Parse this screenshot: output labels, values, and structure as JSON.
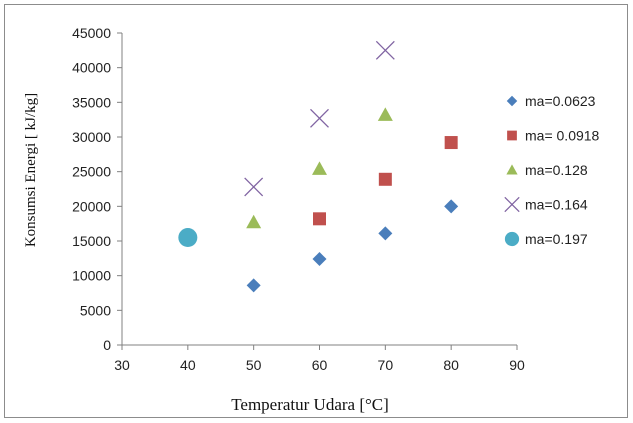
{
  "chart_data": {
    "type": "scatter",
    "xlabel": "Temperatur Udara [°C]",
    "ylabel": "Konsumsi Energi [ kJ/kg]",
    "xlim": [
      30,
      90
    ],
    "ylim": [
      0,
      45000
    ],
    "xticks": [
      30,
      40,
      50,
      60,
      70,
      80,
      90
    ],
    "yticks": [
      0,
      5000,
      10000,
      15000,
      20000,
      25000,
      30000,
      35000,
      40000,
      45000
    ],
    "grid": false,
    "legend_position": "right",
    "series": [
      {
        "name": "ma=0.0623",
        "marker": "diamond",
        "color": "#4a7ebb",
        "points": [
          [
            50,
            8600
          ],
          [
            60,
            12400
          ],
          [
            70,
            16100
          ],
          [
            80,
            20000
          ]
        ]
      },
      {
        "name": "ma= 0.0918",
        "marker": "square",
        "color": "#c0504d",
        "points": [
          [
            60,
            18200
          ],
          [
            70,
            23900
          ],
          [
            80,
            29200
          ]
        ]
      },
      {
        "name": "ma=0.128",
        "marker": "triangle",
        "color": "#9bbb59",
        "points": [
          [
            50,
            17700
          ],
          [
            60,
            25400
          ],
          [
            70,
            33200
          ]
        ]
      },
      {
        "name": "ma=0.164",
        "marker": "x",
        "color": "#8064a2",
        "points": [
          [
            50,
            22800
          ],
          [
            60,
            32700
          ],
          [
            70,
            42500
          ]
        ]
      },
      {
        "name": "ma=0.197",
        "marker": "circle",
        "color": "#4bacc6",
        "points": [
          [
            40,
            15500
          ]
        ]
      }
    ]
  }
}
